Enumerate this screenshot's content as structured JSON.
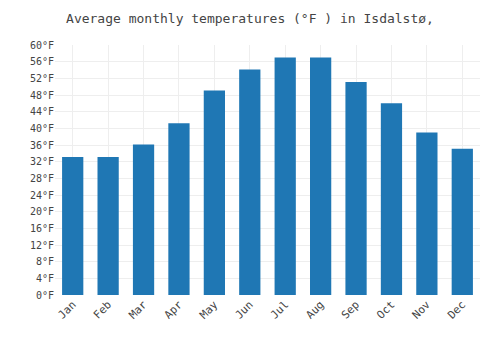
{
  "chart_data": {
    "type": "bar",
    "title": "Average monthly temperatures (°F ) in Isdalstø,",
    "categories": [
      "Jan",
      "Feb",
      "Mar",
      "Apr",
      "May",
      "Jun",
      "Jul",
      "Aug",
      "Sep",
      "Oct",
      "Nov",
      "Dec"
    ],
    "values": [
      33.1,
      33.1,
      36.1,
      41.2,
      49.1,
      54.1,
      57.0,
      57.0,
      51.1,
      46.0,
      39.0,
      35.1
    ],
    "ylim": [
      0,
      60
    ],
    "yticks": [
      {
        "value": 0,
        "label": "0°F"
      },
      {
        "value": 4,
        "label": "4°F"
      },
      {
        "value": 8,
        "label": "8°F"
      },
      {
        "value": 12,
        "label": "12°F"
      },
      {
        "value": 16,
        "label": "16°F"
      },
      {
        "value": 20,
        "label": "20°F"
      },
      {
        "value": 24,
        "label": "24°F"
      },
      {
        "value": 28,
        "label": "28°F"
      },
      {
        "value": 32,
        "label": "32°F"
      },
      {
        "value": 36,
        "label": "36°F"
      },
      {
        "value": 40,
        "label": "40°F"
      },
      {
        "value": 44,
        "label": "44°F"
      },
      {
        "value": 48,
        "label": "48°F"
      },
      {
        "value": 52,
        "label": "52°F"
      },
      {
        "value": 56,
        "label": "56°F"
      },
      {
        "value": 60,
        "label": "60°F"
      }
    ],
    "grid": true
  }
}
